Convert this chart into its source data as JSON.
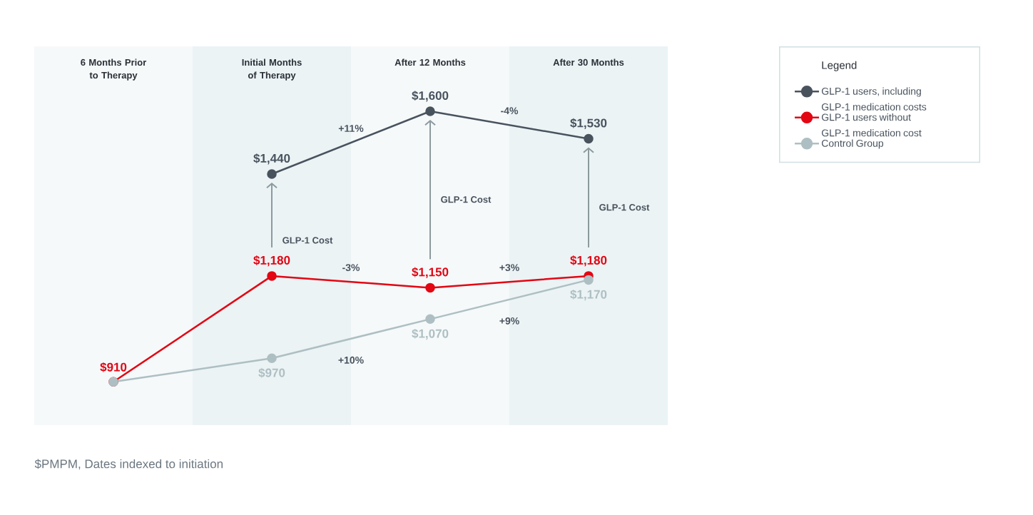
{
  "chart_data": {
    "type": "line",
    "categories": [
      "6 Months Prior to Therapy",
      "Initial Months of Therapy",
      "After 12 Months",
      "After 30 Months"
    ],
    "series": [
      {
        "name": "GLP-1 users, including GLP-1 medication costs",
        "color": "#49535e",
        "values": [
          null,
          1440,
          1600,
          1530
        ],
        "value_labels": [
          null,
          "$1,440",
          "$1,600",
          "$1,530"
        ]
      },
      {
        "name": "GLP-1 users without GLP-1 medication cost",
        "color": "#e30613",
        "values": [
          910,
          1180,
          1150,
          1180
        ],
        "value_labels": [
          "$910",
          "$1,180",
          "$1,150",
          "$1,180"
        ]
      },
      {
        "name": "Control Group",
        "color": "#aebfc3",
        "values": [
          910,
          970,
          1070,
          1170
        ],
        "value_labels": [
          null,
          "$970",
          "$1,070",
          "$1,170"
        ]
      }
    ],
    "marker": "circle",
    "legend": "top right",
    "legend_title": "Legend",
    "tick_labels": "x",
    "annotations": [
      "+11%",
      "-4%",
      "-3%",
      "+3%",
      "+10%",
      "+9%",
      "GLP-1 Cost",
      "GLP-1 Cost",
      "GLP-1 Cost",
      "$PMPM, Dates indexed to initiation"
    ]
  }
}
